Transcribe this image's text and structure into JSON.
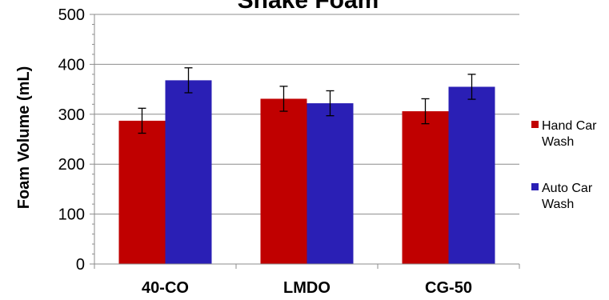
{
  "chart_data": {
    "type": "bar",
    "title": "Snake Foam",
    "xlabel": "",
    "ylabel": "Foam Volume (mL)",
    "ylim": [
      0,
      500
    ],
    "yticks": [
      0,
      100,
      200,
      300,
      400,
      500
    ],
    "grid": true,
    "legend_position": "right",
    "categories": [
      "40-CO",
      "LMDO",
      "CG-50"
    ],
    "series": [
      {
        "name_lines": [
          "Hand Car",
          "Wash"
        ],
        "color": "#C00000",
        "values": [
          287,
          331,
          306
        ],
        "errors": [
          25,
          25,
          25
        ]
      },
      {
        "name_lines": [
          "Auto Car",
          "Wash"
        ],
        "color": "#2A1FB5",
        "values": [
          368,
          322,
          355
        ],
        "errors": [
          25,
          25,
          25
        ]
      }
    ]
  }
}
